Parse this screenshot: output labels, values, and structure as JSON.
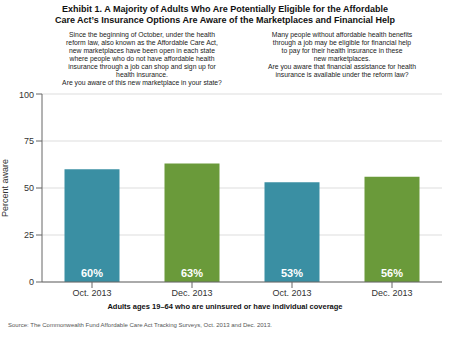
{
  "chart_data": {
    "type": "bar",
    "title": "Exhibit 1. A Majority of Adults Who Are Potentially Eligible for the Affordable\nCare Act’s Insurance Options Are Aware of the Marketplaces and Financial Help",
    "ylabel": "Percent aware",
    "xlabel": "Adults ages 19–64 who are uninsured or have individual coverage",
    "source": "Source: The Commonwealth Fund Affordable Care Act Tracking Surveys, Oct. 2013 and Dec. 2013.",
    "annotations": [
      "Since the beginning of October, under the health\nreform law, also known as the Affordable Care Act,\nnew marketplaces have been open in each state\nwhere people who do not have affordable health\ninsurance through a job can shop and sign up for\nhealth insurance.\nAre you aware of this new marketplace in your state?",
      "Many people without affordable health benefits\nthrough a job may be eligible for financial help\nto pay for their health insurance in these\nnew marketplaces.\nAre you aware that financial assistance for health\ninsurance is available under the reform law?"
    ],
    "categories": [
      "Oct. 2013",
      "Dec. 2013",
      "Oct. 2013",
      "Dec. 2013"
    ],
    "values": [
      60,
      63,
      53,
      56
    ],
    "value_labels": [
      "60%",
      "63%",
      "53%",
      "56%"
    ],
    "colors": [
      "#3a8fa3",
      "#6a9a3a",
      "#3a8fa3",
      "#6a9a3a"
    ],
    "data_labels": true,
    "ylim": [
      0,
      100
    ],
    "yticks": [
      0,
      25,
      50,
      75,
      100
    ],
    "grid": true
  }
}
